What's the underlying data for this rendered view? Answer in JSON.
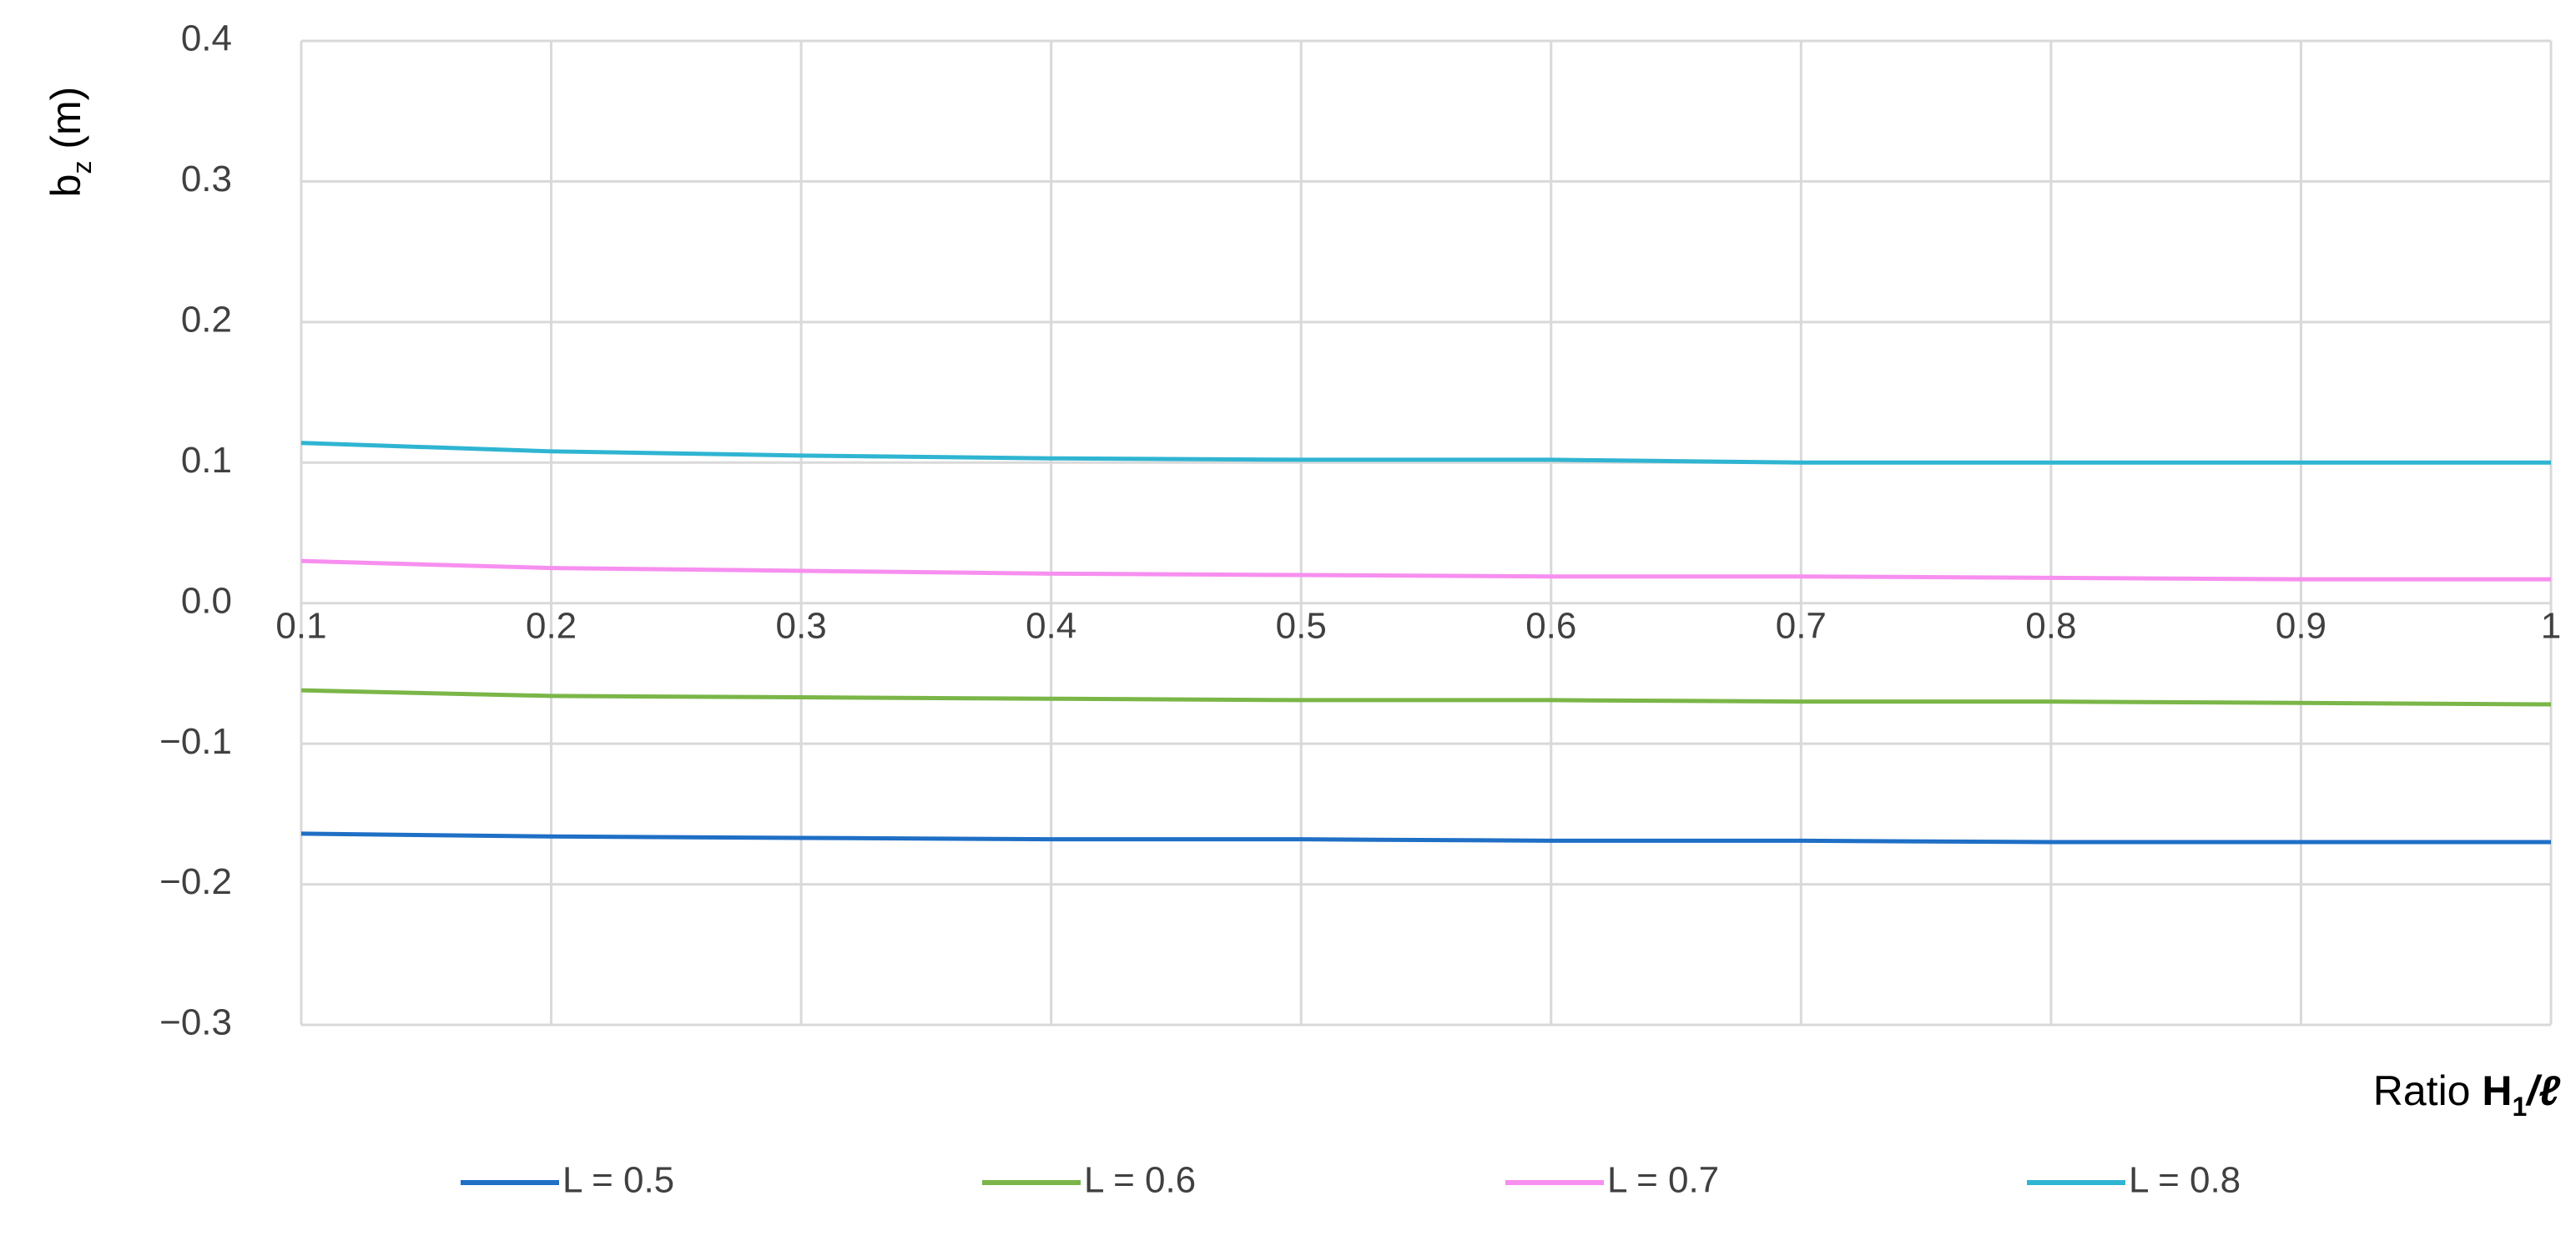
{
  "chart_data": {
    "type": "line",
    "y_label": "b",
    "y_label_sub": "z",
    "y_label_rest": " (m)",
    "x_label": "Ratio ",
    "x_label_bold": "H",
    "x_label_sub": "1",
    "x_label_rest": "/ℓ",
    "x": [
      0.1,
      0.2,
      0.3,
      0.4,
      0.5,
      0.6,
      0.7,
      0.8,
      0.9,
      1
    ],
    "series": [
      {
        "name": "L = 0.5",
        "color": "#1f6fc5",
        "values": [
          -0.164,
          -0.166,
          -0.167,
          -0.168,
          -0.168,
          -0.169,
          -0.169,
          -0.17,
          -0.17,
          -0.17
        ]
      },
      {
        "name": "L = 0.6",
        "color": "#7ab648",
        "values": [
          -0.062,
          -0.066,
          -0.067,
          -0.068,
          -0.069,
          -0.069,
          -0.07,
          -0.07,
          -0.071,
          -0.072
        ]
      },
      {
        "name": "L = 0.7",
        "color": "#f78ff0",
        "values": [
          0.03,
          0.025,
          0.023,
          0.021,
          0.02,
          0.019,
          0.019,
          0.018,
          0.017,
          0.017
        ]
      },
      {
        "name": "L = 0.8",
        "color": "#2fb5d2",
        "values": [
          0.114,
          0.108,
          0.105,
          0.103,
          0.102,
          0.102,
          0.1,
          0.1,
          0.1,
          0.1
        ]
      }
    ],
    "xlim": [
      0.1,
      1
    ],
    "xticks": [
      0.1,
      0.2,
      0.3,
      0.4,
      0.5,
      0.6,
      0.7,
      0.8,
      0.9,
      1
    ],
    "ylim": [
      -0.3,
      0.4
    ],
    "yticks": [
      {
        "value": -0.3,
        "label": "−0.3"
      },
      {
        "value": -0.2,
        "label": "−0.2"
      },
      {
        "value": -0.1,
        "label": "−0.1"
      },
      {
        "value": 0,
        "label": "0.0"
      },
      0.1,
      0.2,
      0.3,
      0.4
    ],
    "grid": true,
    "legend": "bottom"
  }
}
